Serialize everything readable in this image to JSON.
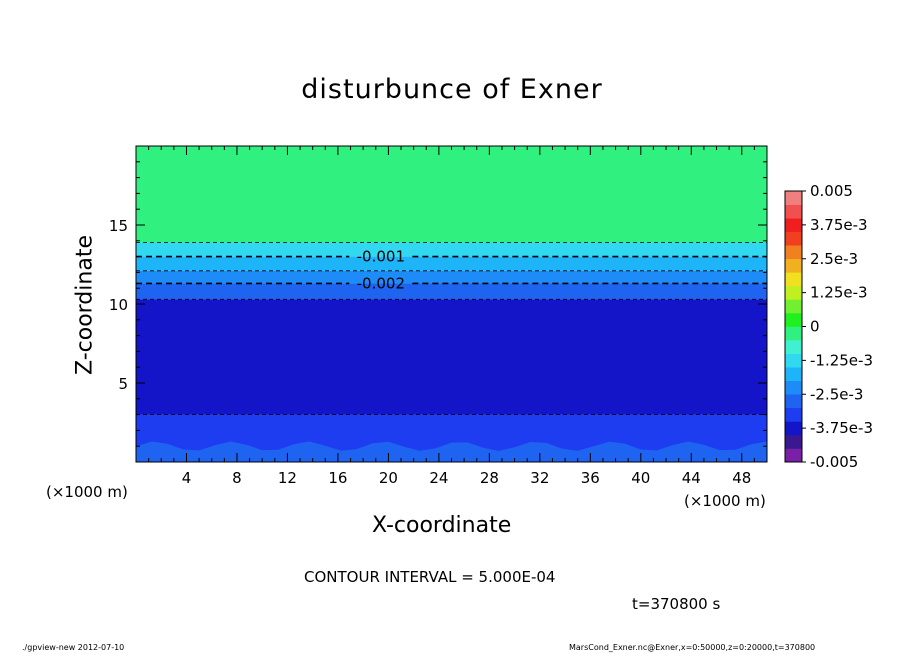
{
  "chart_data": {
    "type": "heatmap",
    "title": "disturbunce of Exner",
    "xlabel": "X-coordinate",
    "ylabel": "Z-coordinate",
    "x_unit": "(×1000 m)",
    "y_unit": "(×1000 m)",
    "xlim": [
      0,
      50
    ],
    "ylim": [
      0,
      20
    ],
    "x_ticks": [
      4,
      8,
      12,
      16,
      20,
      24,
      28,
      32,
      36,
      40,
      44,
      48
    ],
    "y_ticks": [
      5,
      10,
      15
    ],
    "colorbar": {
      "ticks": [
        "0.005",
        "3.75e-3",
        "2.5e-3",
        "1.25e-3",
        "0",
        "-1.25e-3",
        "-2.5e-3",
        "-3.75e-3",
        "-0.005"
      ],
      "min": -0.005,
      "max": 0.005,
      "colors": [
        "#7a20a8",
        "#3a188f",
        "#1414c8",
        "#1e3cf0",
        "#1e64f0",
        "#1e8cf8",
        "#1eb4f8",
        "#30d8f0",
        "#40f0d0",
        "#30f080",
        "#20f020",
        "#70f030",
        "#c0f020",
        "#f0e020",
        "#f0b020",
        "#f08020",
        "#f04020",
        "#f01e1e",
        "#f05050",
        "#f08080"
      ]
    },
    "bands": [
      {
        "z_from": 0,
        "z_to": 3,
        "value": -0.00325
      },
      {
        "z_from": 3,
        "z_to": 10.3,
        "value": -0.00375
      },
      {
        "z_from": 10.3,
        "z_to": 11.3,
        "value": -0.00275
      },
      {
        "z_from": 11.3,
        "z_to": 12.1,
        "value": -0.00225
      },
      {
        "z_from": 12.1,
        "z_to": 13.0,
        "value": -0.00175
      },
      {
        "z_from": 13.0,
        "z_to": 13.9,
        "value": -0.00125
      },
      {
        "z_from": 13.9,
        "z_to": 20,
        "value": -0.00025
      }
    ],
    "contours": [
      {
        "z": 13.9,
        "label": ""
      },
      {
        "z": 13.0,
        "label": "-0.001"
      },
      {
        "z": 12.1,
        "label": ""
      },
      {
        "z": 11.3,
        "label": "-0.002"
      },
      {
        "z": 10.3,
        "label": ""
      },
      {
        "z": 3.0,
        "label": ""
      }
    ],
    "contour_interval": "CONTOUR INTERVAL = 5.000E-04",
    "time": "t=370800 s"
  },
  "annotations": {
    "x_unit_right": "(×1000 m)",
    "footer_left": "./gpview-new  2012-07-10",
    "footer_right": "MarsCond_Exner.nc@Exner,x=0:50000,z=0:20000,t=370800"
  }
}
